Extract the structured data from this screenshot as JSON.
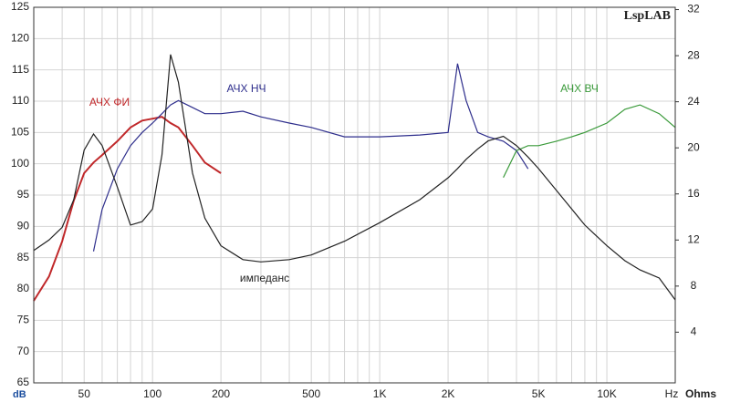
{
  "chart_data": {
    "type": "line",
    "brand": "LspLAB",
    "xlabel": "Hz",
    "ylabel": "dB",
    "y2label": "Ohms",
    "xscale": "log",
    "grid": true,
    "xlim": [
      30,
      20000
    ],
    "xticks": [
      50,
      100,
      200,
      500,
      {
        "value": 1000,
        "label": "1K"
      },
      {
        "value": 2000,
        "label": "2K"
      },
      {
        "value": 5000,
        "label": "5K"
      },
      {
        "value": 10000,
        "label": "10K"
      }
    ],
    "xminor": [
      40,
      60,
      70,
      80,
      90,
      300,
      400,
      600,
      700,
      800,
      900,
      3000,
      4000,
      6000,
      7000,
      8000,
      9000
    ],
    "ylim": [
      65,
      125
    ],
    "yticks": [
      65,
      70,
      75,
      80,
      85,
      90,
      95,
      100,
      105,
      110,
      115,
      120,
      125
    ],
    "y2lim": [
      -0.4,
      32.2
    ],
    "y2ticks": [
      4,
      8,
      12,
      16,
      20,
      24,
      28,
      32
    ],
    "x": [
      30,
      35,
      40,
      45,
      50,
      55,
      60,
      70,
      80,
      90,
      100,
      110,
      120,
      130,
      150,
      170,
      200,
      250,
      300,
      400,
      500,
      700,
      1000,
      1500,
      2000,
      2200,
      2400,
      2700,
      3000,
      3500,
      4000,
      4500,
      5000,
      6000,
      7000,
      8000,
      10000,
      12000,
      14000,
      17000,
      20000
    ],
    "series": [
      {
        "name": "АЧХ ФИ",
        "color": "#c0282a",
        "values": [
          78.1,
          82,
          87.6,
          94.1,
          98.5,
          100.2,
          101.4,
          103.6,
          105.8,
          106.9,
          107.2,
          107.5,
          106.5,
          105.8,
          102.9,
          100.2,
          98.5,
          null,
          null,
          null,
          null,
          null,
          null,
          null,
          null,
          null,
          null,
          null,
          null,
          null,
          null,
          null,
          null,
          null,
          null,
          null,
          null,
          null,
          null,
          null,
          null
        ]
      },
      {
        "name": "АЧХ НЧ",
        "color": "#2e2e8c",
        "values": [
          null,
          null,
          null,
          null,
          null,
          86,
          92.7,
          99.2,
          102.9,
          105,
          106.5,
          108,
          109.4,
          110.1,
          109,
          108,
          108,
          108.4,
          107.5,
          106.5,
          105.8,
          104.3,
          104.3,
          104.6,
          105,
          116,
          110.1,
          105,
          104.3,
          103.6,
          102.1,
          99.2,
          null,
          null,
          null,
          null,
          null,
          null,
          null,
          null,
          null
        ]
      },
      {
        "name": "АЧХ ВЧ",
        "color": "#3a9a3a",
        "values": [
          null,
          null,
          null,
          null,
          null,
          null,
          null,
          null,
          null,
          null,
          null,
          null,
          null,
          null,
          null,
          null,
          null,
          null,
          null,
          null,
          null,
          null,
          null,
          null,
          null,
          null,
          null,
          null,
          null,
          97.8,
          102.1,
          102.9,
          102.9,
          103.6,
          104.3,
          105,
          106.5,
          108.7,
          109.4,
          108,
          105.8
        ]
      },
      {
        "name": "импеданс",
        "color": "#222222",
        "axis": "y2",
        "values": [
          11.1,
          12,
          13.1,
          15.5,
          19.8,
          21.2,
          20.2,
          16.6,
          13.3,
          13.6,
          14.7,
          19.4,
          28.1,
          25.7,
          17.8,
          13.9,
          11.5,
          10.3,
          10.1,
          10.3,
          10.7,
          11.9,
          13.5,
          15.5,
          17.4,
          18.2,
          19,
          19.9,
          20.6,
          21,
          20.2,
          19.2,
          18.2,
          16.3,
          14.7,
          13.3,
          11.5,
          10.2,
          9.4,
          8.7,
          6.8
        ]
      }
    ]
  }
}
